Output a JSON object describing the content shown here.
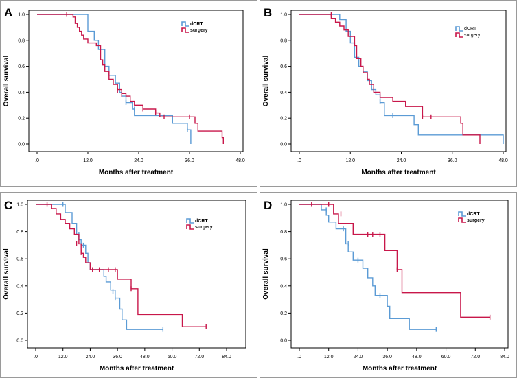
{
  "chart_data": [
    {
      "type": "line",
      "subtype": "kaplan-meier",
      "panel_label": "A",
      "xlabel": "Months after treatment",
      "ylabel": "Overall survival",
      "xlim": [
        0,
        48
      ],
      "ylim": [
        0,
        1
      ],
      "xticks": [
        ".0",
        "12.0",
        "24.0",
        "36.0",
        "48.0"
      ],
      "yticks": [
        "0.0",
        "0.2",
        "0.4",
        "0.6",
        "0.8",
        "1.0"
      ],
      "legend_position": "top-right",
      "series": [
        {
          "name": "dCRT",
          "color": "#5b9bd5",
          "steps": [
            [
              0,
              1.0
            ],
            [
              12,
              0.87
            ],
            [
              13.5,
              0.8
            ],
            [
              14.5,
              0.73
            ],
            [
              16,
              0.6
            ],
            [
              17,
              0.53
            ],
            [
              18.5,
              0.47
            ],
            [
              19.5,
              0.4
            ],
            [
              20,
              0.37
            ],
            [
              21,
              0.32
            ],
            [
              22.5,
              0.27
            ],
            [
              23,
              0.22
            ],
            [
              32,
              0.16
            ],
            [
              35.5,
              0.11
            ],
            [
              36.3,
              0.0
            ]
          ],
          "end": 36.3,
          "censors": [
            [
              21,
              0.32
            ],
            [
              23,
              0.27
            ],
            [
              35.5,
              0.11
            ]
          ]
        },
        {
          "name": "surgery",
          "color": "#c8174a",
          "steps": [
            [
              0,
              1.0
            ],
            [
              8.5,
              0.98
            ],
            [
              9,
              0.93
            ],
            [
              9.5,
              0.9
            ],
            [
              10,
              0.87
            ],
            [
              10.5,
              0.84
            ],
            [
              11,
              0.81
            ],
            [
              12,
              0.78
            ],
            [
              14,
              0.76
            ],
            [
              15,
              0.65
            ],
            [
              15.5,
              0.61
            ],
            [
              16,
              0.56
            ],
            [
              17,
              0.5
            ],
            [
              18,
              0.46
            ],
            [
              19,
              0.42
            ],
            [
              20,
              0.39
            ],
            [
              21,
              0.37
            ],
            [
              22,
              0.33
            ],
            [
              23,
              0.3
            ],
            [
              25,
              0.27
            ],
            [
              28,
              0.24
            ],
            [
              29,
              0.21
            ],
            [
              37.3,
              0.16
            ],
            [
              38,
              0.1
            ],
            [
              43.7,
              0.05
            ],
            [
              44,
              0.0
            ]
          ],
          "end": 44,
          "censors": [
            [
              7,
              1.0
            ],
            [
              19,
              0.41
            ],
            [
              20,
              0.38
            ],
            [
              25,
              0.27
            ],
            [
              28,
              0.24
            ],
            [
              30,
              0.21
            ],
            [
              36,
              0.21
            ]
          ]
        }
      ]
    },
    {
      "type": "line",
      "subtype": "kaplan-meier",
      "panel_label": "B",
      "xlabel": "Months after treatment",
      "ylabel": "Overall survival",
      "xlim": [
        0,
        48
      ],
      "ylim": [
        0,
        1
      ],
      "xticks": [
        ".0",
        "12.0",
        "24.0",
        "36.0",
        "48.0"
      ],
      "yticks": [
        "0.0",
        "0.2",
        "0.4",
        "0.6",
        "0.8",
        "1.0"
      ],
      "legend_position": "top-right",
      "series": [
        {
          "name": "dCRT",
          "color": "#5b9bd5",
          "steps": [
            [
              0,
              1.0
            ],
            [
              9.5,
              0.96
            ],
            [
              11,
              0.87
            ],
            [
              12,
              0.78
            ],
            [
              13,
              0.67
            ],
            [
              14,
              0.6
            ],
            [
              15,
              0.56
            ],
            [
              16,
              0.49
            ],
            [
              17,
              0.42
            ],
            [
              18,
              0.38
            ],
            [
              19,
              0.32
            ],
            [
              20,
              0.22
            ],
            [
              27,
              0.15
            ],
            [
              28,
              0.07
            ],
            [
              48,
              0.0
            ]
          ],
          "end": 48,
          "censors": [
            [
              17.5,
              0.42
            ],
            [
              19,
              0.33
            ],
            [
              22,
              0.22
            ]
          ]
        },
        {
          "name": "surgery",
          "color": "#c8174a",
          "steps": [
            [
              0,
              1.0
            ],
            [
              7.5,
              0.97
            ],
            [
              8.5,
              0.94
            ],
            [
              9.5,
              0.91
            ],
            [
              10.5,
              0.88
            ],
            [
              11.5,
              0.83
            ],
            [
              13,
              0.76
            ],
            [
              13.5,
              0.66
            ],
            [
              14.5,
              0.6
            ],
            [
              15,
              0.55
            ],
            [
              16,
              0.5
            ],
            [
              16.5,
              0.46
            ],
            [
              17.5,
              0.4
            ],
            [
              19,
              0.36
            ],
            [
              22,
              0.33
            ],
            [
              25,
              0.29
            ],
            [
              29,
              0.21
            ],
            [
              38,
              0.16
            ],
            [
              38.5,
              0.07
            ],
            [
              42.5,
              0.0
            ]
          ],
          "end": 42.5,
          "censors": [
            [
              7.5,
              1.0
            ],
            [
              29,
              0.21
            ],
            [
              31,
              0.21
            ]
          ]
        }
      ]
    },
    {
      "type": "line",
      "subtype": "kaplan-meier",
      "panel_label": "C",
      "xlabel": "Months after treatment",
      "ylabel": "Overall survival",
      "xlim": [
        0,
        84
      ],
      "ylim": [
        0,
        1
      ],
      "xticks": [
        ".0",
        "12.0",
        "24.0",
        "36.0",
        "48.0",
        "60.0",
        "72.0",
        "84.0"
      ],
      "yticks": [
        "0.0",
        "0.2",
        "0.4",
        "0.6",
        "0.8",
        "1.0"
      ],
      "legend_position": "top-right",
      "series": [
        {
          "name": "dCRT",
          "color": "#5b9bd5",
          "steps": [
            [
              0,
              1.0
            ],
            [
              13,
              0.94
            ],
            [
              16,
              0.86
            ],
            [
              18,
              0.78
            ],
            [
              19,
              0.74
            ],
            [
              20,
              0.7
            ],
            [
              22,
              0.64
            ],
            [
              23,
              0.57
            ],
            [
              24,
              0.52
            ],
            [
              30,
              0.47
            ],
            [
              31,
              0.43
            ],
            [
              33,
              0.37
            ],
            [
              35,
              0.31
            ],
            [
              37,
              0.23
            ],
            [
              38,
              0.15
            ],
            [
              40,
              0.08
            ],
            [
              56,
              0.08
            ]
          ],
          "end": 56,
          "censors": [
            [
              12,
              1.0
            ],
            [
              19,
              0.78
            ],
            [
              21,
              0.7
            ],
            [
              34,
              0.36
            ],
            [
              35,
              0.31
            ],
            [
              56,
              0.08
            ]
          ]
        },
        {
          "name": "surgery",
          "color": "#c8174a",
          "steps": [
            [
              0,
              1.0
            ],
            [
              7,
              0.97
            ],
            [
              9,
              0.93
            ],
            [
              11,
              0.89
            ],
            [
              13,
              0.86
            ],
            [
              15,
              0.82
            ],
            [
              17,
              0.78
            ],
            [
              19,
              0.71
            ],
            [
              20,
              0.64
            ],
            [
              21,
              0.61
            ],
            [
              22,
              0.57
            ],
            [
              24,
              0.52
            ],
            [
              36,
              0.45
            ],
            [
              42,
              0.38
            ],
            [
              45,
              0.19
            ],
            [
              64.5,
              0.1
            ],
            [
              75,
              0.1
            ]
          ],
          "end": 75,
          "censors": [
            [
              5,
              1.0
            ],
            [
              18,
              0.71
            ],
            [
              20,
              0.65
            ],
            [
              25,
              0.52
            ],
            [
              28,
              0.52
            ],
            [
              32,
              0.52
            ],
            [
              35,
              0.52
            ],
            [
              42,
              0.38
            ],
            [
              75,
              0.1
            ]
          ]
        }
      ]
    },
    {
      "type": "line",
      "subtype": "kaplan-meier",
      "panel_label": "D",
      "xlabel": "Months after treatment",
      "ylabel": "Overall survival",
      "xlim": [
        0,
        84
      ],
      "ylim": [
        0,
        1
      ],
      "xticks": [
        ".0",
        "12.0",
        "24.0",
        "36.0",
        "48.0",
        "60.0",
        "72.0",
        "84.0"
      ],
      "yticks": [
        "0.0",
        "0.2",
        "0.4",
        "0.6",
        "0.8",
        "1.0"
      ],
      "legend_position": "top-right",
      "series": [
        {
          "name": "dCRT",
          "color": "#5b9bd5",
          "steps": [
            [
              0,
              1.0
            ],
            [
              9,
              0.96
            ],
            [
              11,
              0.92
            ],
            [
              12,
              0.87
            ],
            [
              15,
              0.82
            ],
            [
              19,
              0.71
            ],
            [
              20,
              0.65
            ],
            [
              22,
              0.59
            ],
            [
              26,
              0.53
            ],
            [
              28,
              0.46
            ],
            [
              30,
              0.4
            ],
            [
              31,
              0.33
            ],
            [
              36,
              0.25
            ],
            [
              37,
              0.16
            ],
            [
              45,
              0.08
            ],
            [
              56,
              0.08
            ]
          ],
          "end": 56,
          "censors": [
            [
              11,
              0.96
            ],
            [
              18,
              0.82
            ],
            [
              20,
              0.71
            ],
            [
              24,
              0.59
            ],
            [
              33,
              0.33
            ],
            [
              56,
              0.08
            ]
          ]
        },
        {
          "name": "surgery",
          "color": "#c8174a",
          "steps": [
            [
              0,
              1.0
            ],
            [
              14,
              0.93
            ],
            [
              16,
              0.86
            ],
            [
              22,
              0.78
            ],
            [
              35,
              0.66
            ],
            [
              40,
              0.52
            ],
            [
              42,
              0.35
            ],
            [
              66,
              0.17
            ],
            [
              78,
              0.17
            ]
          ],
          "end": 78,
          "censors": [
            [
              5,
              1.0
            ],
            [
              12,
              1.0
            ],
            [
              17,
              0.93
            ],
            [
              28,
              0.78
            ],
            [
              30,
              0.78
            ],
            [
              33,
              0.78
            ],
            [
              40,
              0.52
            ],
            [
              78,
              0.17
            ]
          ]
        }
      ]
    }
  ]
}
